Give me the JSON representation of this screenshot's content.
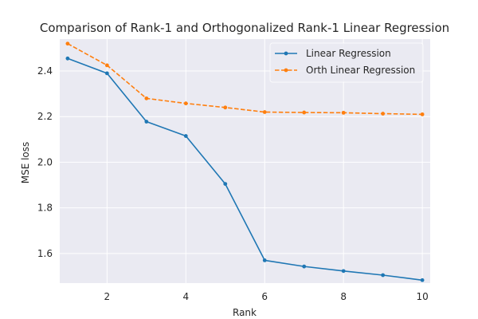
{
  "chart_data": {
    "type": "line",
    "title": "Comparison of Rank-1 and Orthogonalized Rank-1 Linear Regression",
    "xlabel": "Rank",
    "ylabel": "MSE loss",
    "x": [
      1,
      2,
      3,
      4,
      5,
      6,
      7,
      8,
      9,
      10
    ],
    "xlim": [
      0.8,
      10.2
    ],
    "ylim": [
      1.47,
      2.54
    ],
    "xticks": [
      2,
      4,
      6,
      8,
      10
    ],
    "yticks": [
      1.6,
      1.8,
      2.0,
      2.2,
      2.4
    ],
    "ytick_labels": [
      "1.6",
      "1.8",
      "2.0",
      "2.2",
      "2.4"
    ],
    "grid": true,
    "legend_position": "top-right",
    "series": [
      {
        "name": "Linear Regression",
        "color": "#1f77b4",
        "linestyle": "solid",
        "values": [
          2.455,
          2.39,
          2.178,
          2.115,
          1.905,
          1.57,
          1.543,
          1.523,
          1.505,
          1.483
        ]
      },
      {
        "name": "Orth Linear Regression",
        "color": "#ff7f0e",
        "linestyle": "dashed",
        "values": [
          2.52,
          2.425,
          2.28,
          2.258,
          2.24,
          2.22,
          2.218,
          2.217,
          2.213,
          2.21
        ]
      }
    ]
  }
}
